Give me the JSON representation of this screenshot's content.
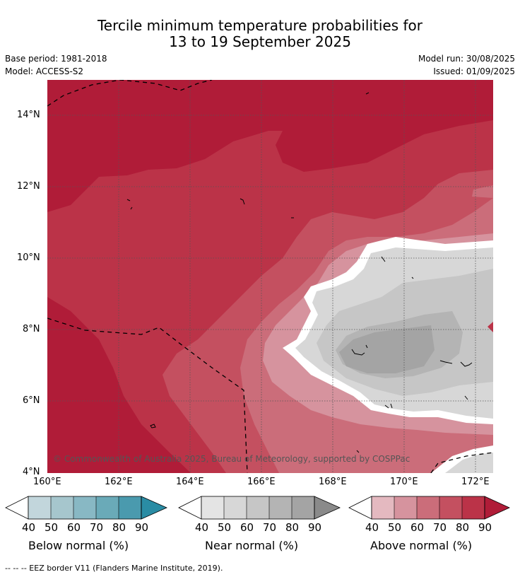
{
  "header": {
    "title_line1": "Tercile minimum temperature probabilities for",
    "title_line2": "13 to 19 September 2025",
    "base_period": "Base period: 1981-2018",
    "model": "Model: ACCESS-S2",
    "model_run": "Model run: 30/08/2025",
    "issued": "Issued: 01/09/2025"
  },
  "map": {
    "lat_labels": [
      "14°N",
      "12°N",
      "10°N",
      "8°N",
      "6°N",
      "4°N"
    ],
    "lon_labels": [
      "160°E",
      "162°E",
      "164°E",
      "166°E",
      "168°E",
      "170°E",
      "172°E"
    ],
    "copyright": "© Commonwealth of Australia 2025, Bureau of Meteorology, supported by COSPPac",
    "lon_range": [
      160,
      172.5
    ],
    "lat_range": [
      4,
      15
    ]
  },
  "legend": {
    "ticks": [
      "40",
      "50",
      "60",
      "70",
      "80",
      "90"
    ],
    "below_label": "Below normal (%)",
    "near_label": "Near normal (%)",
    "above_label": "Above normal (%)",
    "below_colors": [
      "#c2d6dc",
      "#a6c6cd",
      "#88b8c4",
      "#6aaab8",
      "#4a9aae",
      "#2a8ca4"
    ],
    "near_colors": [
      "#e4e4e4",
      "#d7d7d7",
      "#c6c6c6",
      "#b4b4b4",
      "#a4a4a4",
      "#8a8a8a"
    ],
    "above_colors": [
      "#e4b9c0",
      "#d6939e",
      "#cb6d7a",
      "#c45060",
      "#bb3348",
      "#b01c38"
    ]
  },
  "footer": {
    "eez_note": "--  --  -- EEZ border V11 (Flanders Marine Institute, 2019)."
  }
}
